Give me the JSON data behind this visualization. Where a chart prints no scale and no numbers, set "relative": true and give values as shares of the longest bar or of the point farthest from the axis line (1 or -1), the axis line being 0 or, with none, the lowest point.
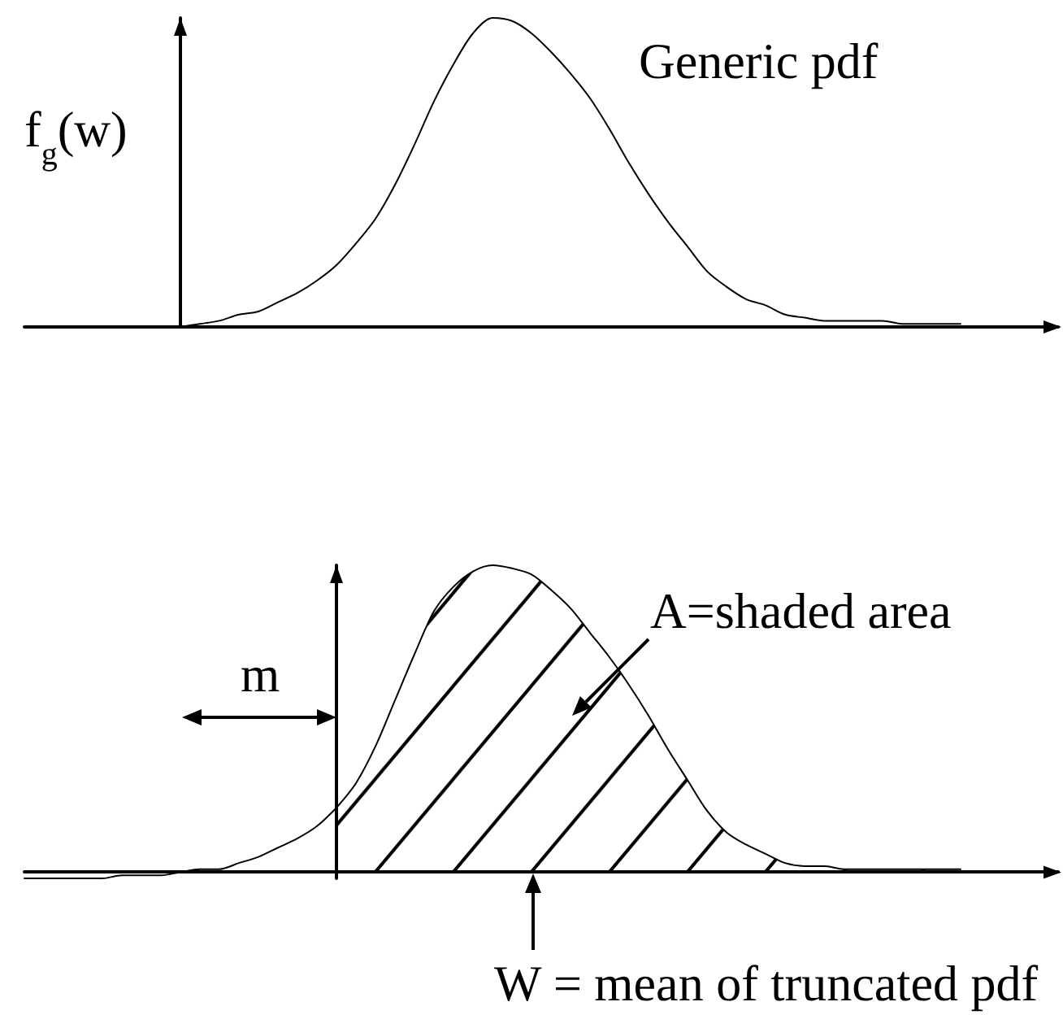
{
  "chart_data": [
    {
      "type": "line",
      "title": "Generic pdf",
      "ylabel": "f$_{g}$(w)",
      "relative": true,
      "categories": [
        null,
        null,
        null,
        null,
        null,
        null,
        null,
        null,
        null,
        null,
        null,
        null,
        null,
        null,
        null,
        null,
        null,
        null,
        null,
        null,
        null,
        null,
        null,
        null,
        null,
        null,
        null,
        null,
        null,
        null,
        null,
        null,
        null,
        null,
        null,
        null,
        null,
        null,
        null,
        null,
        null,
        null,
        null,
        null,
        null,
        null,
        null,
        null,
        null,
        null,
        null,
        null,
        null,
        null
      ],
      "series": [
        {
          "color": "#000000",
          "values": [
            null,
            null,
            null,
            null,
            null,
            null,
            null,
            null,
            0,
            0.01,
            0.02,
            0.04,
            0.05,
            0.08,
            0.11,
            0.15,
            0.2,
            0.27,
            0.35,
            0.46,
            0.59,
            0.73,
            0.85,
            0.95,
            1.0,
            0.99,
            0.95,
            0.89,
            0.82,
            0.74,
            0.64,
            0.53,
            0.43,
            0.34,
            0.26,
            0.18,
            0.13,
            0.09,
            0.07,
            0.04,
            0.03,
            0.02,
            0.02,
            0.02,
            0.02,
            0.01,
            0.01,
            0.01,
            0.01,
            null,
            null,
            null,
            null,
            null
          ]
        }
      ]
    },
    {
      "type": "line",
      "relative": true,
      "categories": [
        null,
        null,
        null,
        null,
        null,
        null,
        null,
        null,
        null,
        null,
        null,
        null,
        null,
        null,
        null,
        null,
        null,
        null,
        null,
        null,
        null,
        null,
        null,
        null,
        null,
        null,
        null,
        null,
        null,
        null,
        null,
        null,
        null,
        null,
        null,
        null,
        null,
        null,
        null,
        null,
        null,
        null,
        null,
        null,
        null,
        null,
        null,
        null,
        null,
        null,
        null,
        null,
        null,
        null
      ],
      "series": [
        {
          "color": "#000000",
          "values": [
            -0.02,
            -0.02,
            -0.02,
            -0.02,
            -0.02,
            -0.01,
            -0.01,
            -0.01,
            0,
            0.01,
            0.01,
            0.03,
            0.05,
            0.08,
            0.11,
            0.15,
            0.21,
            null,
            null,
            null,
            null,
            null,
            null,
            null,
            null,
            null,
            null,
            null,
            null,
            null,
            null,
            null,
            null,
            null,
            null,
            null,
            null,
            null,
            null,
            null,
            null,
            null,
            null,
            null,
            null,
            null,
            null,
            null,
            null,
            null,
            null,
            null,
            null,
            null
          ]
        },
        {
          "type": "area",
          "color": "#000000",
          "values": [
            null,
            null,
            null,
            null,
            null,
            null,
            null,
            null,
            null,
            null,
            null,
            null,
            null,
            null,
            null,
            null,
            0.21,
            0.29,
            0.41,
            0.56,
            0.71,
            0.85,
            0.93,
            0.98,
            1.0,
            0.99,
            0.97,
            0.92,
            0.86,
            0.78,
            0.7,
            0.61,
            0.51,
            0.4,
            0.3,
            0.2,
            0.13,
            0.09,
            0.06,
            0.03,
            0.02,
            0.02,
            0.01,
            0.01,
            0.01,
            0.01,
            0.01,
            0.01,
            0.01,
            null,
            null,
            null,
            null,
            null
          ]
        }
      ],
      "annotations": [
        "m",
        "A=shaded area",
        "W = mean of truncated pdf"
      ]
    }
  ]
}
